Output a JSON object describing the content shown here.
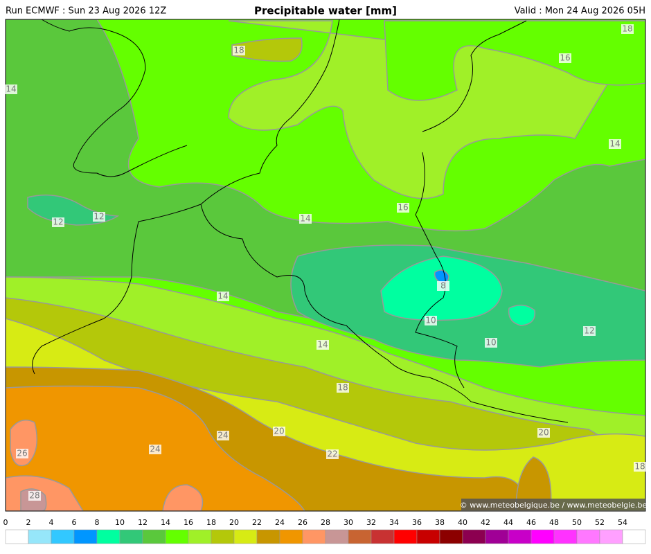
{
  "header": {
    "run": "Run ECMWF : Sun 23 Aug 2026 12Z",
    "title": "Precipitable water [mm]",
    "valid": "Valid : Mon 24 Aug 2026 05H"
  },
  "contour_labels": [
    18,
    16,
    18,
    14,
    14,
    16,
    12,
    12,
    14,
    14,
    8,
    10,
    10,
    12,
    14,
    18,
    24,
    20,
    20,
    22,
    24,
    26,
    28,
    18
  ],
  "colorbar": {
    "ticks": [
      0,
      2,
      4,
      6,
      8,
      10,
      12,
      14,
      16,
      18,
      20,
      22,
      24,
      26,
      28,
      30,
      32,
      34,
      36,
      38,
      40,
      42,
      44,
      46,
      48,
      50,
      52,
      54
    ],
    "colors": [
      "#ffffff",
      "#96e6fa",
      "#32c8ff",
      "#0096ff",
      "#00ffa0",
      "#32c878",
      "#5ac83c",
      "#64ff00",
      "#a0f028",
      "#b4c80a",
      "#d7eb14",
      "#c89600",
      "#f09600",
      "#ff9664",
      "#c89696",
      "#c86432",
      "#c83232",
      "#ff0000",
      "#c80000",
      "#8c0000",
      "#8c0050",
      "#a00096",
      "#c800c8",
      "#ff00ff",
      "#ff32ff",
      "#ff78ff",
      "#ffa0ff",
      "#ffffff"
    ]
  },
  "credit": "© www.meteobelgique.be / www.meteobelgie.be"
}
